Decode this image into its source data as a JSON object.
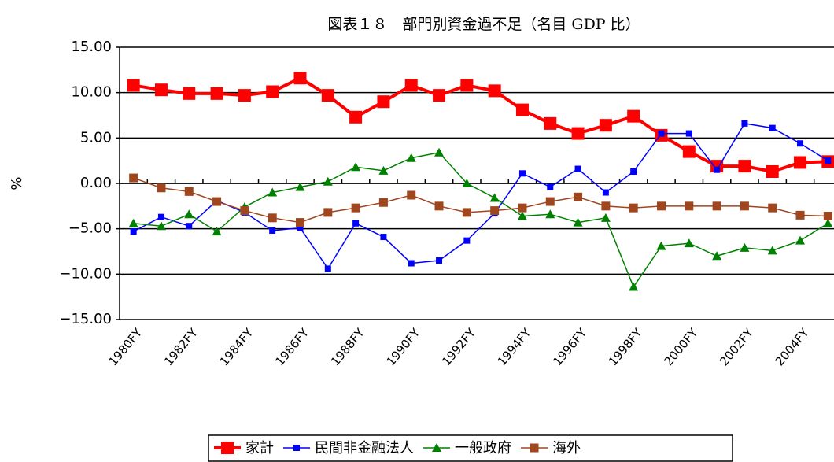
{
  "chart_data": {
    "type": "line",
    "title": "図表１８　部門別資金過不足（名目 GDP 比）",
    "y_label": "%",
    "categories": [
      "1980FY",
      null,
      "1982FY",
      null,
      "1984FY",
      null,
      "1986FY",
      null,
      "1988FY",
      null,
      "1990FY",
      null,
      "1992FY",
      null,
      "1994FY",
      null,
      "1996FY",
      null,
      "1998FY",
      null,
      "2000FY",
      null,
      "2002FY",
      null,
      "2004FY",
      null
    ],
    "ylim": [
      -15,
      15
    ],
    "yticks": [
      {
        "value": -15,
        "label": "−15.00"
      },
      {
        "value": -10,
        "label": "−10.00"
      },
      {
        "value": -5,
        "label": "−5.00"
      },
      {
        "value": 0,
        "label": "0.00"
      },
      {
        "value": 5,
        "label": "5.00"
      },
      {
        "value": 10,
        "label": "10.00"
      },
      {
        "value": 15,
        "label": "15.00"
      }
    ],
    "grid": true,
    "legend": "bottom",
    "series": [
      {
        "name": "家計",
        "color": "#ff0000",
        "marker": "square-large",
        "values": [
          10.8,
          10.3,
          9.9,
          9.9,
          9.7,
          10.1,
          11.6,
          9.7,
          7.3,
          9.0,
          10.8,
          9.7,
          10.8,
          10.2,
          8.1,
          6.6,
          5.5,
          6.4,
          7.4,
          5.3,
          3.5,
          1.9,
          1.9,
          1.3,
          2.3,
          2.4
        ]
      },
      {
        "name": "民間非金融法人",
        "color": "#0000ff",
        "marker": "square-small",
        "values": [
          -5.3,
          -3.7,
          -4.7,
          -1.9,
          -3.2,
          -5.2,
          -4.9,
          -9.4,
          -4.4,
          -5.9,
          -8.8,
          -8.5,
          -6.3,
          -3.3,
          1.1,
          -0.4,
          1.6,
          -1.0,
          1.3,
          5.5,
          5.5,
          1.5,
          6.6,
          6.1,
          4.4,
          2.5
        ]
      },
      {
        "name": "一般政府",
        "color": "#008000",
        "marker": "triangle",
        "values": [
          -4.4,
          -4.7,
          -3.4,
          -5.3,
          -2.6,
          -1.0,
          -0.4,
          0.2,
          1.8,
          1.4,
          2.8,
          3.4,
          0.0,
          -1.6,
          -3.6,
          -3.4,
          -4.3,
          -3.8,
          -11.4,
          -6.9,
          -6.6,
          -8.0,
          -7.1,
          -7.4,
          -6.3,
          -4.4
        ]
      },
      {
        "name": "海外",
        "color": "#a0461e",
        "marker": "square-medium",
        "values": [
          0.6,
          -0.5,
          -0.9,
          -2.0,
          -3.0,
          -3.8,
          -4.3,
          -3.2,
          -2.7,
          -2.1,
          -1.3,
          -2.5,
          -3.2,
          -3.0,
          -2.7,
          -2.0,
          -1.5,
          -2.5,
          -2.7,
          -2.5,
          -2.5,
          -2.5,
          -2.5,
          -2.7,
          -3.5,
          -3.6
        ]
      }
    ]
  }
}
